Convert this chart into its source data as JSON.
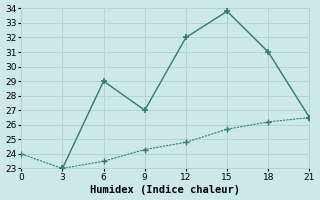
{
  "xlabel": "Humidex (Indice chaleur)",
  "bg_color": "#cce8e8",
  "grid_color": "#b0d4d4",
  "line_color": "#2e7d6e",
  "upper_x": [
    3,
    6,
    9,
    12,
    15,
    18,
    21
  ],
  "upper_y": [
    23,
    29,
    27,
    32,
    33.8,
    31,
    26.5
  ],
  "lower_x": [
    0,
    3,
    6,
    9,
    12,
    15,
    18,
    21
  ],
  "lower_y": [
    24,
    23,
    23.5,
    24.3,
    24.8,
    25.7,
    26.2,
    26.5
  ],
  "xlim": [
    0,
    21
  ],
  "ylim": [
    23,
    34
  ],
  "xticks": [
    0,
    3,
    6,
    9,
    12,
    15,
    18,
    21
  ],
  "yticks": [
    23,
    24,
    25,
    26,
    27,
    28,
    29,
    30,
    31,
    32,
    33,
    34
  ],
  "xlabel_fontsize": 7.5,
  "tick_fontsize": 6.5
}
